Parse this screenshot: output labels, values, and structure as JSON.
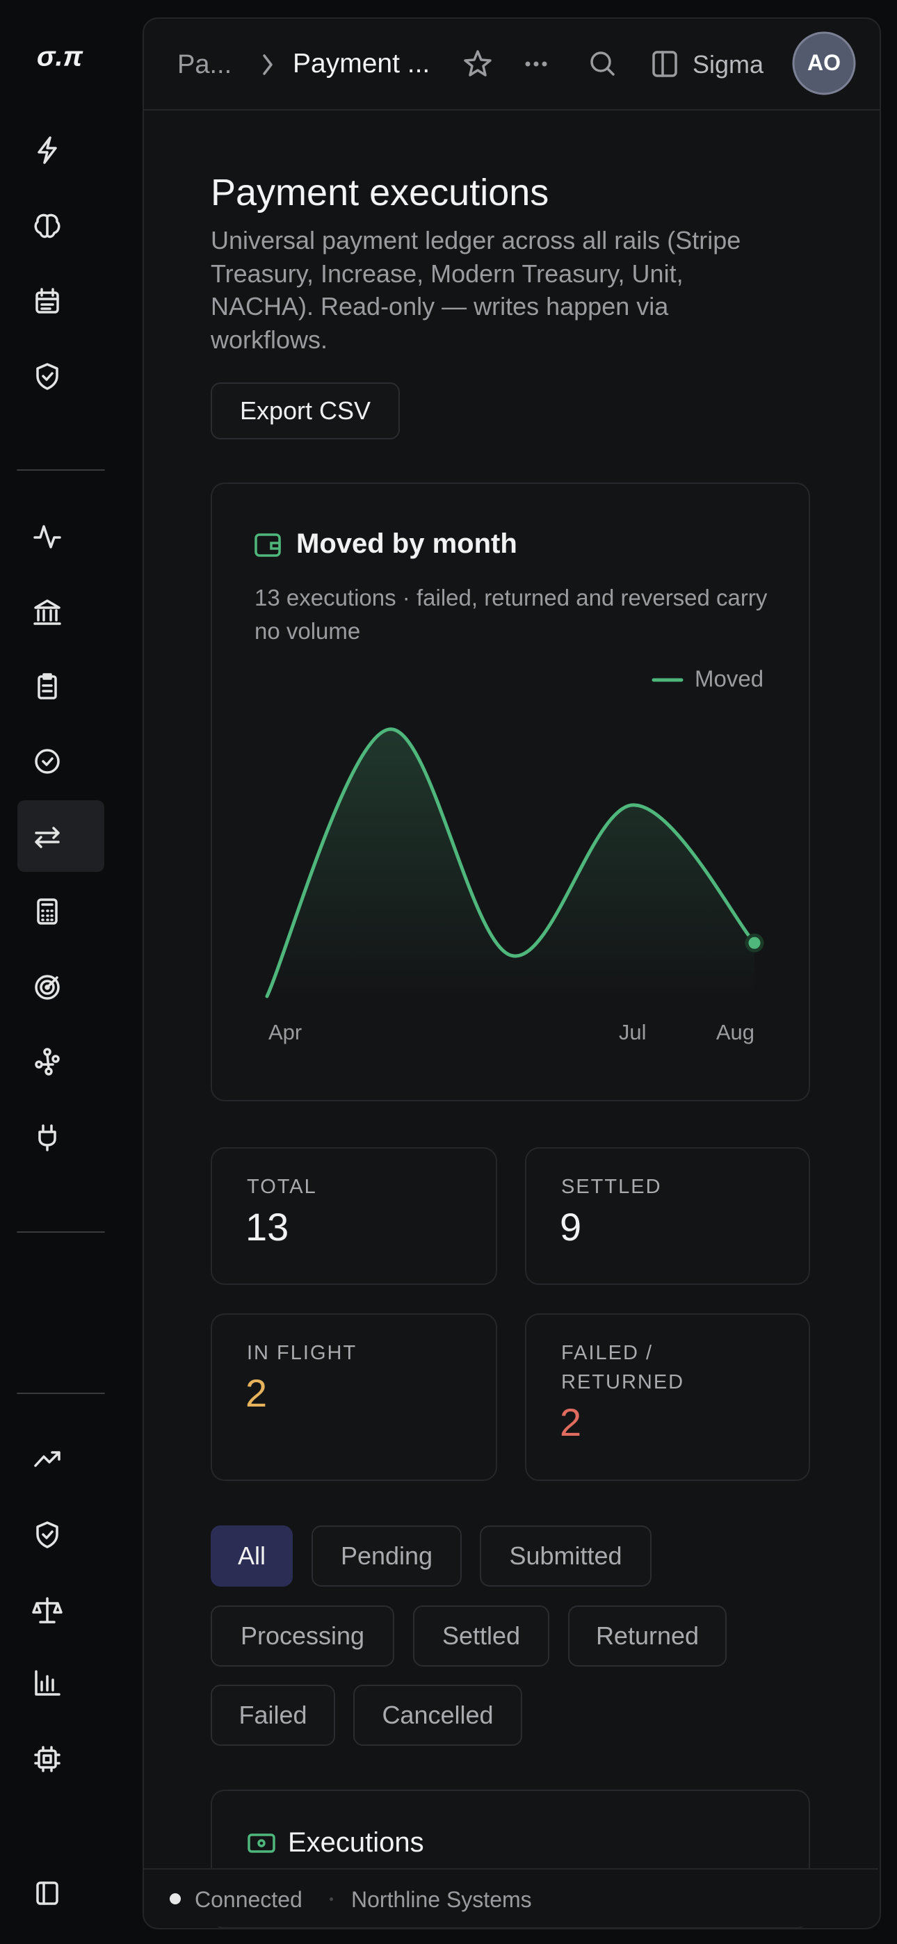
{
  "sidebar": {
    "logo": "σ.π"
  },
  "header": {
    "breadcrumb_parent": "Pa...",
    "breadcrumb_current": "Payment ...",
    "workspace": "Sigma",
    "avatar": "AO"
  },
  "page": {
    "title": "Payment executions",
    "description": "Universal payment ledger across all rails (Stripe Treasury, Increase, Modern Treasury, Unit, NACHA). Read-only — writes happen via workflows.",
    "export_button": "Export CSV"
  },
  "chart_data": {
    "type": "line",
    "title": "Moved by month",
    "subtitle": "13 executions · failed, returned and reversed carry no volume",
    "categories": [
      "Apr",
      null,
      null,
      "Jul",
      "Aug"
    ],
    "series": [
      {
        "name": "Moved",
        "color": "#4fb67c",
        "values": [
          0,
          215,
          33,
          154,
          43
        ]
      }
    ],
    "ylim": [
      0,
      220
    ]
  },
  "stats": [
    {
      "label": "TOTAL",
      "value": 13
    },
    {
      "label": "SETTLED",
      "value": 9
    },
    {
      "label": "IN FLIGHT",
      "value": 2
    },
    {
      "label": "FAILED / RETURNED",
      "value": 2
    }
  ],
  "filters": [
    "All",
    "Pending",
    "Submitted",
    "Processing",
    "Settled",
    "Returned",
    "Failed",
    "Cancelled"
  ],
  "executions": {
    "title": "Executions"
  },
  "footer": {
    "status": "Connected",
    "organization": "Northline Systems"
  }
}
